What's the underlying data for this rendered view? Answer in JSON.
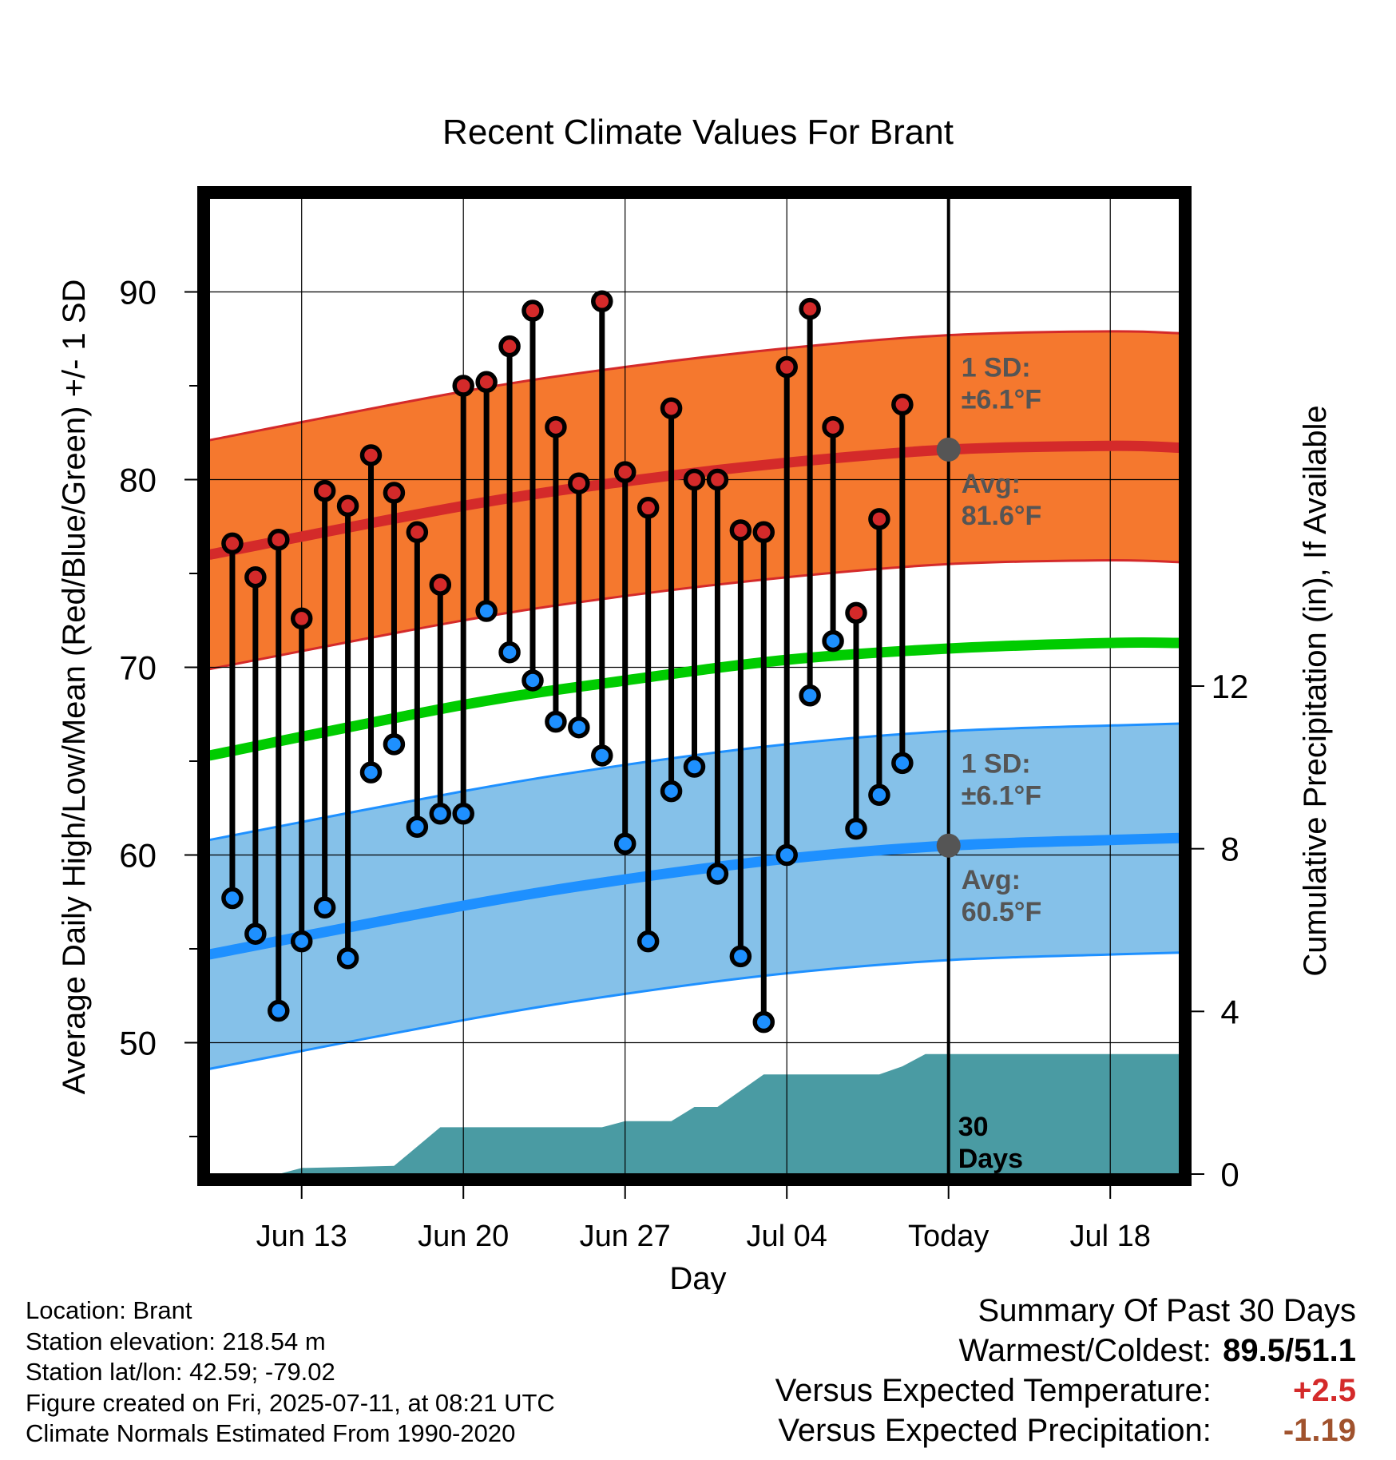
{
  "chart_data": {
    "type": "line",
    "title": "Recent Climate Values For Brant",
    "xlabel": "Day",
    "ylabel": "Average Daily High/Low/Mean (Red/Blue/Green) +/- 1 SD",
    "y2label": "Cumulative Precipitation (in), If Available",
    "ylim": [
      43,
      95
    ],
    "y2lim": [
      0,
      24
    ],
    "y_ticks": [
      50,
      60,
      70,
      80,
      90
    ],
    "y2_ticks": [
      0,
      4,
      8,
      12
    ],
    "x_ticks": [
      {
        "date": "2025-06-13",
        "label": "Jun 13"
      },
      {
        "date": "2025-06-20",
        "label": "Jun 20"
      },
      {
        "date": "2025-06-27",
        "label": "Jun 27"
      },
      {
        "date": "2025-07-04",
        "label": "Jul 04"
      },
      {
        "date": "2025-07-11",
        "label": "Today"
      },
      {
        "date": "2025-07-18",
        "label": "Jul 18"
      }
    ],
    "xlim": [
      "2025-06-09",
      "2025-07-21"
    ],
    "today": "2025-07-11",
    "grid": true,
    "colors": {
      "high": "#d42a2a",
      "low": "#1e90ff",
      "mean": "#00cc00",
      "high_band": "#f5782e",
      "low_band": "#85c1e9",
      "precip": "#4a9ba3",
      "annotation": "#555555",
      "positive": "#d42a2a",
      "precip_diff": "#a0522d"
    },
    "daily": [
      {
        "date": "2025-06-10",
        "high": 76.6,
        "low": 57.7
      },
      {
        "date": "2025-06-11",
        "high": 74.8,
        "low": 55.8
      },
      {
        "date": "2025-06-12",
        "high": 76.8,
        "low": 51.7
      },
      {
        "date": "2025-06-13",
        "high": 72.6,
        "low": 55.4
      },
      {
        "date": "2025-06-14",
        "high": 79.4,
        "low": 57.2
      },
      {
        "date": "2025-06-15",
        "high": 78.6,
        "low": 54.5
      },
      {
        "date": "2025-06-16",
        "high": 81.3,
        "low": 64.4
      },
      {
        "date": "2025-06-17",
        "high": 79.3,
        "low": 65.9
      },
      {
        "date": "2025-06-18",
        "high": 77.2,
        "low": 61.5
      },
      {
        "date": "2025-06-19",
        "high": 74.4,
        "low": 62.2
      },
      {
        "date": "2025-06-20",
        "high": 85.0,
        "low": 62.2
      },
      {
        "date": "2025-06-21",
        "high": 85.2,
        "low": 73.0
      },
      {
        "date": "2025-06-22",
        "high": 87.1,
        "low": 70.8
      },
      {
        "date": "2025-06-23",
        "high": 89.0,
        "low": 69.3
      },
      {
        "date": "2025-06-24",
        "high": 82.8,
        "low": 67.1
      },
      {
        "date": "2025-06-25",
        "high": 79.8,
        "low": 66.8
      },
      {
        "date": "2025-06-26",
        "high": 89.5,
        "low": 65.3
      },
      {
        "date": "2025-06-27",
        "high": 80.4,
        "low": 60.6
      },
      {
        "date": "2025-06-28",
        "high": 78.5,
        "low": 55.4
      },
      {
        "date": "2025-06-29",
        "high": 83.8,
        "low": 63.4
      },
      {
        "date": "2025-06-30",
        "high": 80.0,
        "low": 64.7
      },
      {
        "date": "2025-07-01",
        "high": 80.0,
        "low": 59.0
      },
      {
        "date": "2025-07-02",
        "high": 77.3,
        "low": 54.6
      },
      {
        "date": "2025-07-03",
        "high": 77.2,
        "low": 51.1
      },
      {
        "date": "2025-07-04",
        "high": 86.0,
        "low": 60.0
      },
      {
        "date": "2025-07-05",
        "high": 89.1,
        "low": 68.5
      },
      {
        "date": "2025-07-06",
        "high": 82.8,
        "low": 71.4
      },
      {
        "date": "2025-07-07",
        "high": 72.9,
        "low": 61.4
      },
      {
        "date": "2025-07-08",
        "high": 77.9,
        "low": 63.2
      },
      {
        "date": "2025-07-09",
        "high": 84.0,
        "low": 64.9
      }
    ],
    "normal_high": [
      {
        "date": "2025-06-09",
        "value": 76.0
      },
      {
        "date": "2025-06-20",
        "value": 78.6
      },
      {
        "date": "2025-06-27",
        "value": 79.9
      },
      {
        "date": "2025-07-04",
        "value": 80.9
      },
      {
        "date": "2025-07-11",
        "value": 81.6
      },
      {
        "date": "2025-07-18",
        "value": 81.8
      },
      {
        "date": "2025-07-21",
        "value": 81.7
      }
    ],
    "normal_low": [
      {
        "date": "2025-06-09",
        "value": 54.7
      },
      {
        "date": "2025-06-20",
        "value": 57.3
      },
      {
        "date": "2025-06-27",
        "value": 58.7
      },
      {
        "date": "2025-07-04",
        "value": 59.8
      },
      {
        "date": "2025-07-11",
        "value": 60.5
      },
      {
        "date": "2025-07-18",
        "value": 60.8
      },
      {
        "date": "2025-07-21",
        "value": 60.9
      }
    ],
    "normal_mean": [
      {
        "date": "2025-06-09",
        "value": 65.3
      },
      {
        "date": "2025-06-20",
        "value": 68.0
      },
      {
        "date": "2025-06-27",
        "value": 69.3
      },
      {
        "date": "2025-07-04",
        "value": 70.4
      },
      {
        "date": "2025-07-11",
        "value": 71.0
      },
      {
        "date": "2025-07-18",
        "value": 71.3
      },
      {
        "date": "2025-07-21",
        "value": 71.3
      }
    ],
    "sd_high": 6.1,
    "sd_low": 6.1,
    "cumulative_precip": [
      {
        "date": "2025-06-12",
        "value": 0.0
      },
      {
        "date": "2025-06-13",
        "value": 0.15
      },
      {
        "date": "2025-06-17",
        "value": 0.2
      },
      {
        "date": "2025-06-19",
        "value": 1.15
      },
      {
        "date": "2025-06-26",
        "value": 1.15
      },
      {
        "date": "2025-06-27",
        "value": 1.3
      },
      {
        "date": "2025-06-29",
        "value": 1.3
      },
      {
        "date": "2025-06-30",
        "value": 1.65
      },
      {
        "date": "2025-07-01",
        "value": 1.65
      },
      {
        "date": "2025-07-03",
        "value": 2.45
      },
      {
        "date": "2025-07-08",
        "value": 2.45
      },
      {
        "date": "2025-07-09",
        "value": 2.65
      },
      {
        "date": "2025-07-10",
        "value": 2.95
      },
      {
        "date": "2025-07-21",
        "value": 2.95
      }
    ],
    "annotations": {
      "high_sd_label": "1 SD:",
      "high_sd_value": "±6.1°F",
      "high_avg_label": "Avg:",
      "high_avg_value": "81.6°F",
      "low_sd_label": "1 SD:",
      "low_sd_value": "±6.1°F",
      "low_avg_label": "Avg:",
      "low_avg_value": "60.5°F",
      "precip_line1": "30",
      "precip_line2": "Days"
    }
  },
  "info": {
    "location": "Location: Brant",
    "elevation": "Station elevation: 218.54 m",
    "latlon": "Station lat/lon: 42.59; -79.02",
    "created": "Figure created on Fri, 2025-07-11, at 08:21 UTC",
    "normals": "Climate Normals Estimated From 1990-2020"
  },
  "summary": {
    "title": "Summary Of Past 30 Days",
    "warm_cold_label": "Warmest/Coldest:",
    "warm_cold_value": "89.5/51.1",
    "temp_label": "Versus Expected Temperature:",
    "temp_value": "+2.5",
    "precip_label": "Versus Expected Precipitation:",
    "precip_value": "-1.19"
  }
}
